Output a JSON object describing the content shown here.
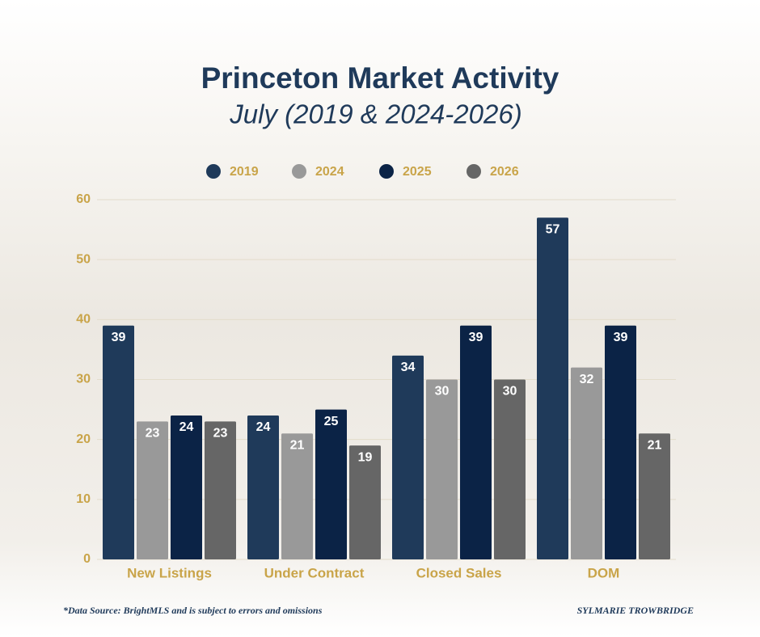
{
  "chart_data": {
    "type": "bar",
    "title": "Princeton Market Activity",
    "subtitle": "July (2019 & 2024-2026)",
    "categories": [
      "New Listings",
      "Under Contract",
      "Closed Sales",
      "DOM"
    ],
    "series": [
      {
        "name": "2019",
        "color": "#1f3a5a",
        "values": [
          39,
          24,
          34,
          57
        ]
      },
      {
        "name": "2024",
        "color": "#999999",
        "values": [
          23,
          21,
          30,
          32
        ]
      },
      {
        "name": "2025",
        "color": "#0b2346",
        "values": [
          24,
          25,
          39,
          39
        ]
      },
      {
        "name": "2026",
        "color": "#666666",
        "values": [
          23,
          19,
          30,
          21
        ]
      }
    ],
    "ylim": [
      0,
      60
    ],
    "yticks": [
      0,
      10,
      20,
      30,
      40,
      50,
      60
    ],
    "grid": true,
    "legend": "top",
    "footnote": "*Data Source: BrightMLS and is subject to errors and omissions",
    "credit": "SYLMARIE TROWBRIDGE"
  }
}
